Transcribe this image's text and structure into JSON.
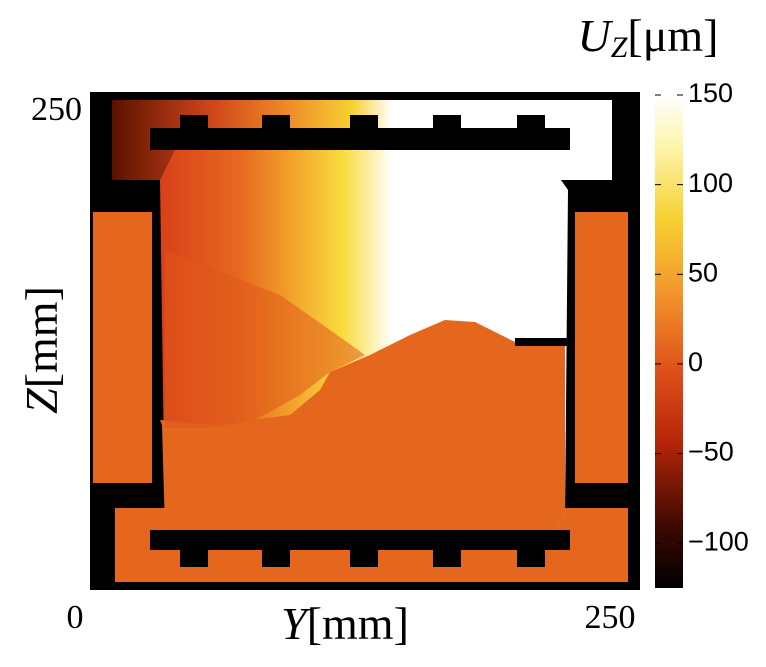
{
  "chart_data": {
    "type": "heatmap",
    "colorbar_label": {
      "symbol": "U",
      "subscript": "Z",
      "unit": "[μm]"
    },
    "x_label": {
      "symbol": "Y",
      "unit": "[mm]"
    },
    "y_label": {
      "symbol": "Z",
      "unit": "[mm]"
    },
    "xlim": [
      0,
      250
    ],
    "xticks": [
      0,
      250
    ],
    "ylim": [
      0,
      250
    ],
    "yticks": [
      250
    ],
    "clim": [
      -125,
      150
    ],
    "cticks": [
      150,
      100,
      50,
      0,
      {
        "value": -50,
        "label": "−50"
      },
      {
        "value": -100,
        "label": "−100"
      }
    ],
    "colormap": "hot"
  }
}
